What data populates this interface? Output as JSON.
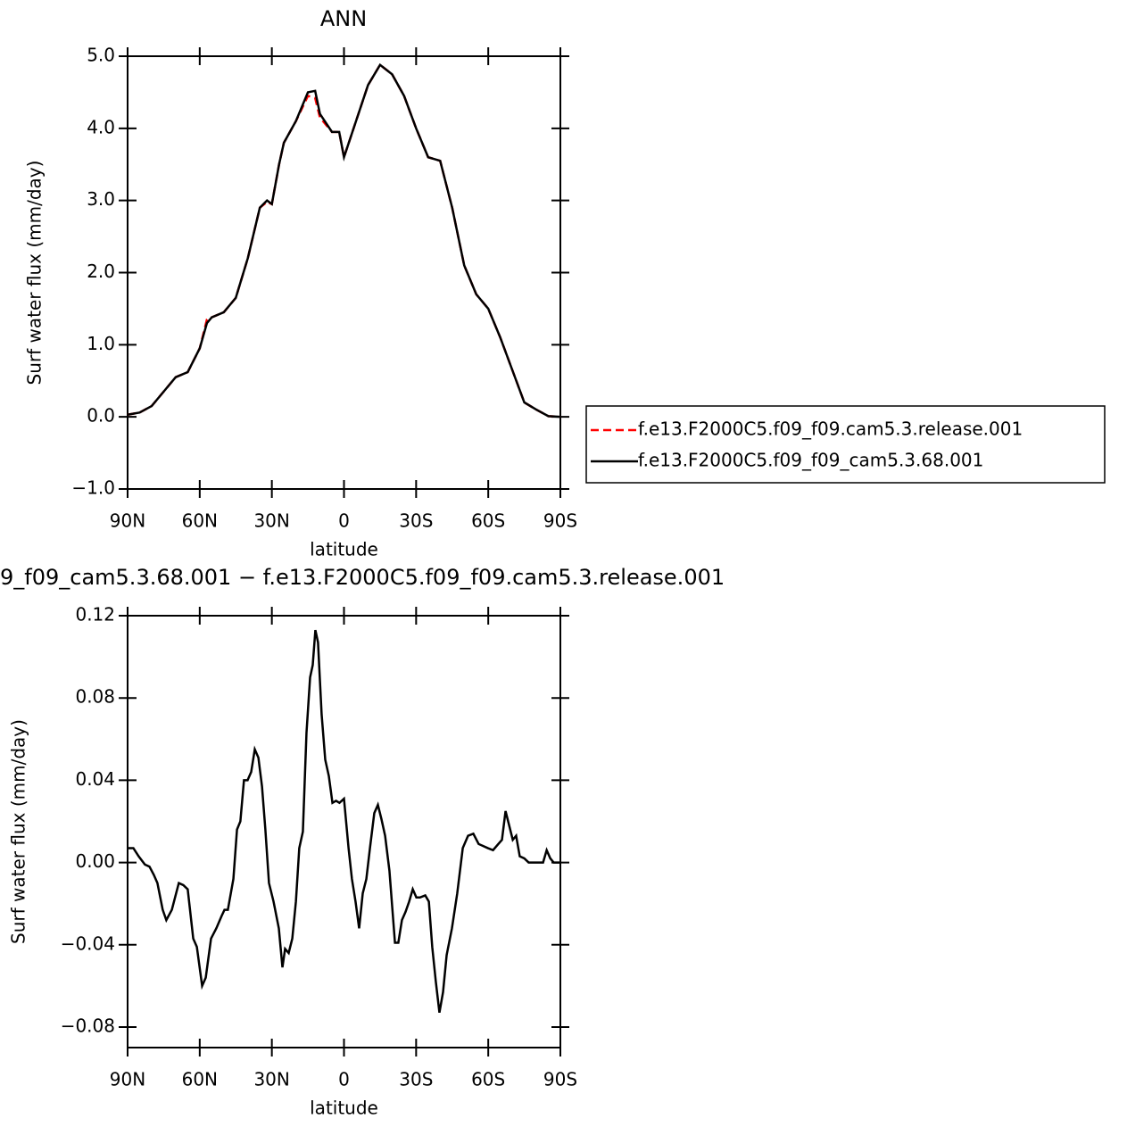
{
  "chart_data": [
    {
      "type": "line",
      "title": "ANN",
      "xlabel": "latitude",
      "ylabel": "Surf  water  flux  (mm/day)",
      "x": [
        90,
        85,
        80,
        75,
        70,
        65,
        60,
        57,
        55,
        50,
        45,
        40,
        35,
        32,
        30,
        27,
        25,
        20,
        15,
        12,
        10,
        5,
        2,
        0,
        -5,
        -10,
        -15,
        -20,
        -25,
        -30,
        -35,
        -40,
        -45,
        -50,
        -55,
        -60,
        -65,
        -70,
        -75,
        -80,
        -85,
        -90
      ],
      "series": [
        {
          "name": "f.e13.F2000C5.f09_f09.cam5.3.release.001",
          "color": "#ff0000",
          "dash": "dashed",
          "values": [
            0.03,
            0.06,
            0.15,
            0.35,
            0.55,
            0.62,
            0.95,
            1.35,
            1.38,
            1.45,
            1.65,
            2.2,
            2.9,
            2.98,
            2.95,
            3.5,
            3.8,
            4.1,
            4.45,
            4.42,
            4.15,
            3.95,
            3.95,
            3.6,
            4.1,
            4.6,
            4.88,
            4.75,
            4.45,
            4.0,
            3.6,
            3.55,
            2.9,
            2.1,
            1.7,
            1.5,
            1.1,
            0.65,
            0.2,
            0.1,
            0.01,
            0.0
          ]
        },
        {
          "name": "f.e13.F2000C5.f09_f09_cam5.3.68.001",
          "color": "#000000",
          "dash": "solid",
          "values": [
            0.03,
            0.06,
            0.15,
            0.35,
            0.55,
            0.62,
            0.95,
            1.3,
            1.38,
            1.45,
            1.65,
            2.2,
            2.9,
            3.0,
            2.95,
            3.5,
            3.8,
            4.1,
            4.5,
            4.52,
            4.2,
            3.95,
            3.95,
            3.6,
            4.1,
            4.6,
            4.88,
            4.75,
            4.45,
            4.0,
            3.6,
            3.55,
            2.9,
            2.1,
            1.7,
            1.5,
            1.1,
            0.65,
            0.2,
            0.1,
            0.01,
            0.0
          ]
        }
      ],
      "xlim": [
        90,
        -90
      ],
      "xticks": [
        {
          "value": 90,
          "label": "90N"
        },
        {
          "value": 60,
          "label": "60N"
        },
        {
          "value": 30,
          "label": "30N"
        },
        0,
        {
          "value": -30,
          "label": "30S"
        },
        {
          "value": -60,
          "label": "60S"
        },
        {
          "value": -90,
          "label": "90S"
        }
      ],
      "ylim": [
        -1,
        5
      ],
      "yticks": [
        {
          "value": -1,
          "label": "−1.0"
        },
        {
          "value": 0,
          "label": "0.0"
        },
        {
          "value": 1,
          "label": "1.0"
        },
        {
          "value": 2,
          "label": "2.0"
        },
        {
          "value": 3,
          "label": "3.0"
        },
        {
          "value": 4,
          "label": "4.0"
        },
        {
          "value": 5,
          "label": "5.0"
        }
      ],
      "legend": "right"
    },
    {
      "type": "line",
      "title": "9_f09_cam5.3.68.001  −  f.e13.F2000C5.f09_f09.cam5.3.release.001",
      "xlabel": "latitude",
      "ylabel": "Surf  water  flux  (mm/day)",
      "x": [
        90,
        87.6,
        85.4,
        82.8,
        80.9,
        79.1,
        77.6,
        75.4,
        73.9,
        71.6,
        68.7,
        66.8,
        65.0,
        62.7,
        61.2,
        59.0,
        57.5,
        55.3,
        53.1,
        50.9,
        49.7,
        48.3,
        46.0,
        44.5,
        43.1,
        41.6,
        40.1,
        38.6,
        37.1,
        35.6,
        34.1,
        32.7,
        31.2,
        29.3,
        27.1,
        25.6,
        24.5,
        23.0,
        21.5,
        20.0,
        18.6,
        17.1,
        15.6,
        14.1,
        13.0,
        11.9,
        10.8,
        9.3,
        7.8,
        6.3,
        4.8,
        3.3,
        1.9,
        0,
        -1.9,
        -3.3,
        -4.8,
        -6.3,
        -7.8,
        -9.3,
        -10.8,
        -12.6,
        -14.1,
        -15.6,
        -17.1,
        -18.9,
        -21.2,
        -22.6,
        -24.1,
        -25.6,
        -27.1,
        -28.6,
        -30.1,
        -31.6,
        -33.8,
        -35.3,
        -36.7,
        -38.2,
        -39.7,
        -41.2,
        -42.7,
        -44.9,
        -47.1,
        -49.4,
        -51.6,
        -53.8,
        -56.0,
        -57.9,
        -59.8,
        -62.0,
        -64.2,
        -65.7,
        -67.2,
        -68.7,
        -70.2,
        -71.6,
        -73.1,
        -75.0,
        -76.8,
        -78.3,
        -79.8,
        -81.3,
        -82.8,
        -84.3,
        -85.8,
        -87.2,
        -90
      ],
      "values": [
        0.007,
        0.007,
        0.003,
        -0.001,
        -0.002,
        -0.006,
        -0.01,
        -0.023,
        -0.028,
        -0.023,
        -0.01,
        -0.011,
        -0.013,
        -0.037,
        -0.041,
        -0.06,
        -0.056,
        -0.037,
        -0.032,
        -0.026,
        -0.023,
        -0.023,
        -0.008,
        0.016,
        0.02,
        0.04,
        0.04,
        0.044,
        0.055,
        0.051,
        0.037,
        0.016,
        -0.01,
        -0.019,
        -0.032,
        -0.051,
        -0.042,
        -0.044,
        -0.037,
        -0.019,
        0.007,
        0.015,
        0.063,
        0.09,
        0.096,
        0.113,
        0.107,
        0.072,
        0.05,
        0.042,
        0.029,
        0.03,
        0.029,
        0.031,
        0.007,
        -0.008,
        -0.019,
        -0.032,
        -0.015,
        -0.008,
        0.007,
        0.024,
        0.028,
        0.021,
        0.013,
        -0.004,
        -0.039,
        -0.039,
        -0.028,
        -0.024,
        -0.019,
        -0.013,
        -0.017,
        -0.017,
        -0.016,
        -0.019,
        -0.041,
        -0.058,
        -0.073,
        -0.063,
        -0.045,
        -0.032,
        -0.015,
        0.007,
        0.013,
        0.014,
        0.009,
        0.008,
        0.007,
        0.006,
        0.009,
        0.011,
        0.025,
        0.018,
        0.011,
        0.013,
        0.003,
        0.002,
        0,
        0,
        0,
        0,
        0,
        0.006,
        0.002,
        0,
        0
      ],
      "color": "#000000",
      "xlim": [
        90,
        -90
      ],
      "xticks": [
        {
          "value": 90,
          "label": "90N"
        },
        {
          "value": 60,
          "label": "60N"
        },
        {
          "value": 30,
          "label": "30N"
        },
        0,
        {
          "value": -30,
          "label": "30S"
        },
        {
          "value": -60,
          "label": "60S"
        },
        {
          "value": -90,
          "label": "90S"
        }
      ],
      "ylim": [
        -0.09,
        0.12
      ],
      "yticks": [
        {
          "value": -0.08,
          "label": "−0.08"
        },
        {
          "value": -0.04,
          "label": "−0.04"
        },
        {
          "value": 0,
          "label": "0.00"
        },
        0.04,
        0.08,
        0.12
      ]
    }
  ]
}
